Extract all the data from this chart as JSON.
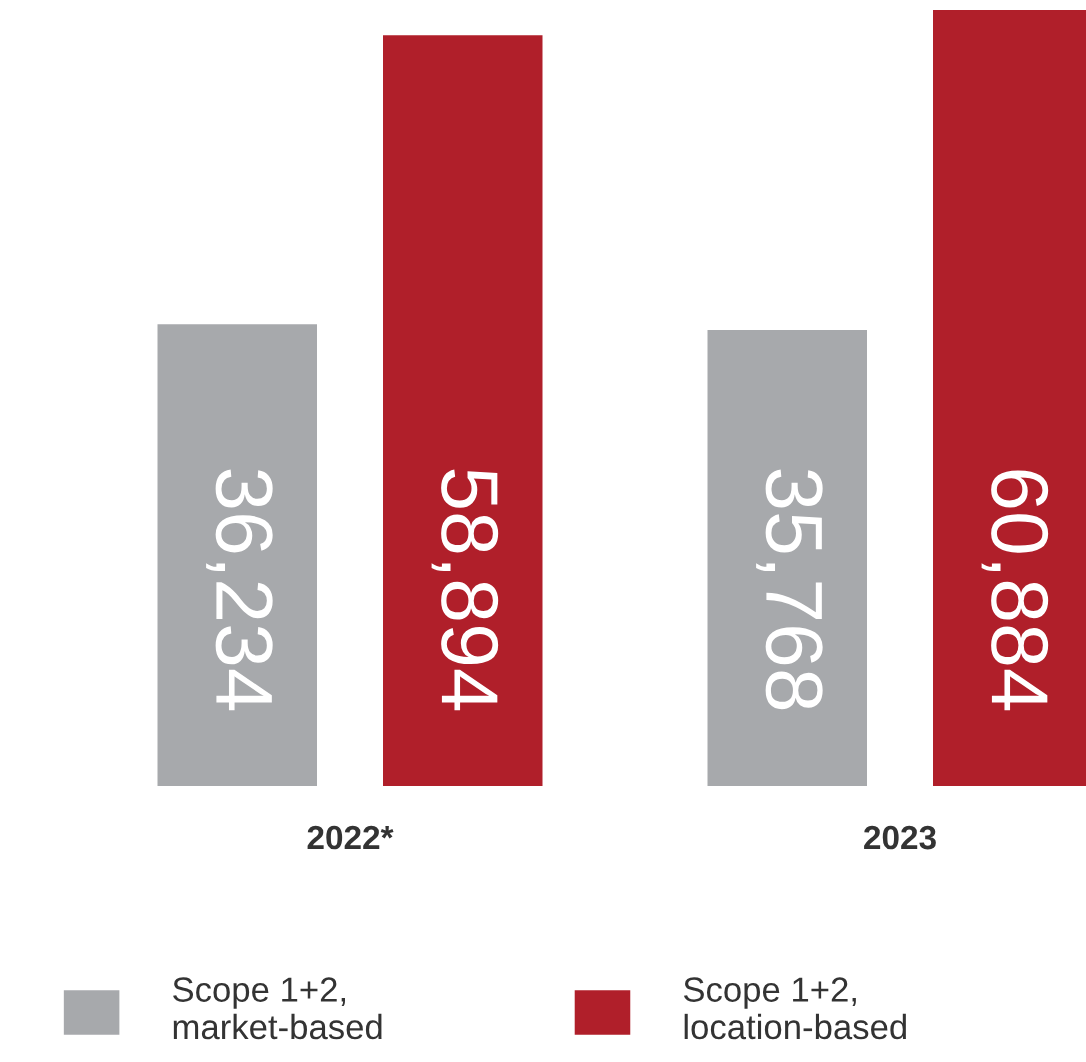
{
  "chart_data": {
    "type": "bar",
    "categories": [
      "2022*",
      "2023"
    ],
    "series": [
      {
        "name": "Scope 1+2,\nmarket-based",
        "color": "#a7a9ac",
        "values": [
          36234,
          35768
        ],
        "value_labels": [
          "36,234",
          "35,768"
        ]
      },
      {
        "name": "Scope 1+2,\nlocation-based",
        "color": "#b01f2a",
        "values": [
          58894,
          60884
        ],
        "value_labels": [
          "58,894",
          "60,884"
        ]
      }
    ],
    "legend": "bottom",
    "grid": false,
    "tick_labels": "x"
  }
}
